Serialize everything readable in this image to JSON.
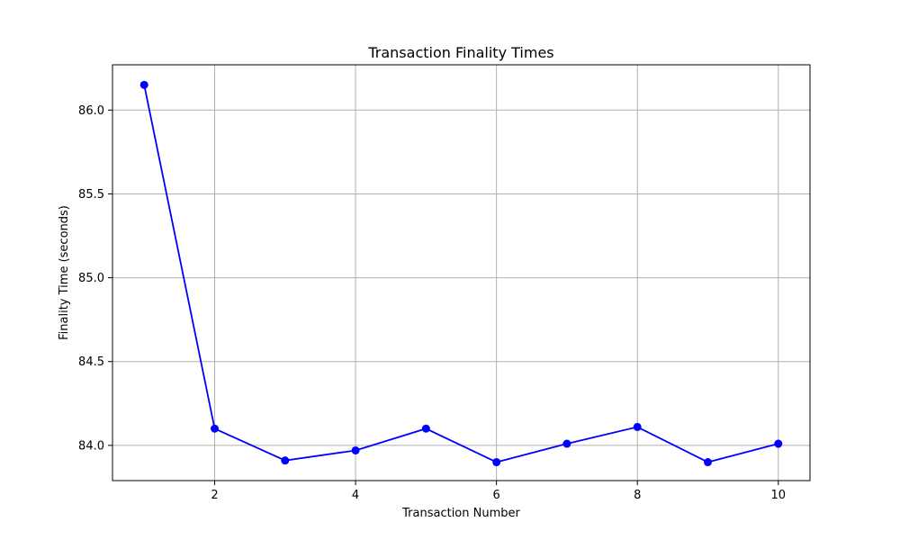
{
  "chart_data": {
    "type": "line",
    "title": "Transaction Finality Times",
    "xlabel": "Transaction Number",
    "ylabel": "Finality Time (seconds)",
    "x": [
      1,
      2,
      3,
      4,
      5,
      6,
      7,
      8,
      9,
      10
    ],
    "series": [
      {
        "values": [
          86.15,
          84.1,
          83.91,
          83.97,
          84.1,
          83.9,
          84.01,
          84.11,
          83.9,
          84.01
        ],
        "color": "#0000ff",
        "marker": "circle"
      }
    ],
    "xlim": [
      0.55,
      10.45
    ],
    "ylim": [
      83.79,
      86.27
    ],
    "xticks": [
      2,
      4,
      6,
      8,
      10
    ],
    "xtick_labels": [
      "2",
      "4",
      "6",
      "8",
      "10"
    ],
    "yticks": [
      84.0,
      84.5,
      85.0,
      85.5,
      86.0
    ],
    "ytick_labels": [
      "84.0",
      "84.5",
      "85.0",
      "85.5",
      "86.0"
    ],
    "grid": true,
    "legend": "none"
  }
}
